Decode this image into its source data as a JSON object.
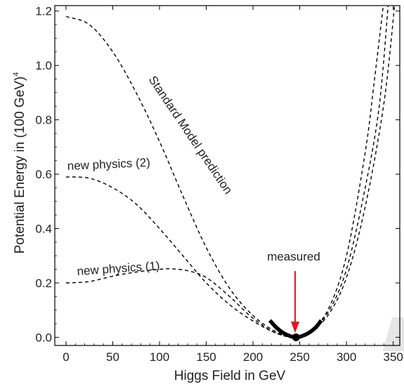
{
  "chart_data": {
    "type": "line",
    "xlabel": "Higgs Field in GeV",
    "ylabel_main": "Potential Energy in (100 GeV)",
    "ylabel_sup": "4",
    "xlim": [
      -12,
      357
    ],
    "ylim": [
      -0.03,
      1.22
    ],
    "xticks": [
      0,
      50,
      100,
      150,
      200,
      250,
      300,
      350
    ],
    "yticks": [
      0.0,
      0.2,
      0.4,
      0.6,
      0.8,
      1.0,
      1.2
    ],
    "ytick_labels": [
      "0.0",
      "0.2",
      "0.4",
      "0.6",
      "0.8",
      "1.0",
      "1.2"
    ],
    "grid": false,
    "series": [
      {
        "name": "Standard Model prediction",
        "style": "dashed",
        "x": [
          0,
          25,
          50,
          75,
          100,
          125,
          150,
          175,
          200,
          225,
          246,
          260,
          280,
          300,
          320,
          330,
          340
        ],
        "y": [
          1.18,
          1.15,
          1.05,
          0.9,
          0.72,
          0.52,
          0.33,
          0.18,
          0.08,
          0.02,
          0.0,
          0.02,
          0.1,
          0.3,
          0.68,
          0.95,
          1.24
        ]
      },
      {
        "name": "new physics (2)",
        "style": "dashed",
        "x": [
          0,
          25,
          50,
          75,
          100,
          125,
          150,
          175,
          200,
          225,
          246,
          260,
          280,
          300,
          320,
          335,
          345
        ],
        "y": [
          0.59,
          0.585,
          0.55,
          0.49,
          0.4,
          0.3,
          0.2,
          0.12,
          0.06,
          0.015,
          0.0,
          0.02,
          0.09,
          0.25,
          0.55,
          0.85,
          1.24
        ]
      },
      {
        "name": "new physics (1)",
        "style": "dashed",
        "x": [
          0,
          25,
          50,
          75,
          100,
          112,
          130,
          150,
          175,
          200,
          225,
          246,
          260,
          280,
          300,
          320,
          340,
          352
        ],
        "y": [
          0.2,
          0.205,
          0.225,
          0.24,
          0.25,
          0.252,
          0.245,
          0.22,
          0.15,
          0.07,
          0.015,
          0.0,
          0.02,
          0.08,
          0.22,
          0.48,
          0.86,
          1.24
        ]
      },
      {
        "name": "measured",
        "style": "solid-bold",
        "x": [
          218,
          225,
          232,
          240,
          246,
          252,
          260,
          267,
          273
        ],
        "y": [
          0.062,
          0.036,
          0.017,
          0.004,
          0.0,
          0.004,
          0.017,
          0.036,
          0.062
        ]
      }
    ],
    "point": {
      "x": 246,
      "y": 0.0
    },
    "annotations": {
      "sm_label": "Standard Model prediction",
      "np2_label": "new physics (2)",
      "np1_label": "new physics (1)",
      "measured_label": "measured"
    },
    "colors": {
      "curves": "#000000",
      "arrow": "#e8141b",
      "watermark": "#e6e6e6"
    }
  }
}
